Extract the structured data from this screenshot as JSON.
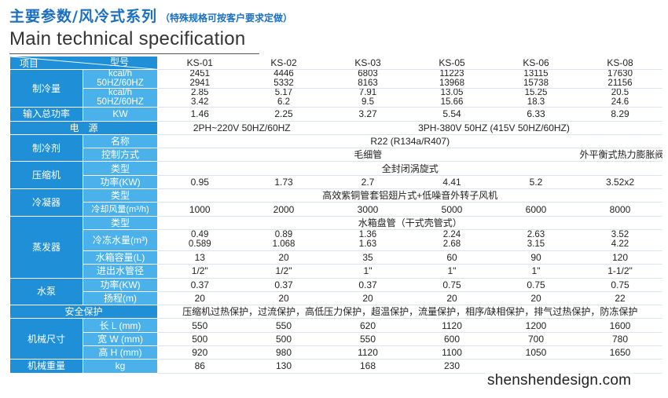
{
  "header": {
    "title_cn": "主要参数/风冷式系列",
    "title_note": "（特殊规格可按客户要求定做）",
    "title_en": "Main technical specification"
  },
  "table": {
    "corner_top": "型号",
    "corner_bottom": "项目",
    "models": [
      "KS-01",
      "KS-02",
      "KS-03",
      "KS-05",
      "KS-06",
      "KS-08"
    ],
    "cooling": {
      "label": "制冷量",
      "row1": {
        "unit": "kcal/h",
        "values": [
          "2451",
          "4446",
          "6803",
          "11223",
          "13115",
          "17630"
        ]
      },
      "row2": {
        "unit": "50HZ/60HZ",
        "values": [
          "2941",
          "5332",
          "8163",
          "13968",
          "15738",
          "21156"
        ]
      },
      "row3": {
        "unit": "kcal/h",
        "values": [
          "2.85",
          "5.17",
          "7.91",
          "13.05",
          "15.25",
          "20.5"
        ]
      },
      "row4": {
        "unit": "50HZ/60HZ",
        "values": [
          "3.42",
          "6.2",
          "9.5",
          "15.66",
          "18.3",
          "24.6"
        ]
      }
    },
    "input_power": {
      "label": "输入总功率",
      "unit": "KW",
      "values": [
        "1.46",
        "2.25",
        "3.27",
        "5.54",
        "6.33",
        "8.29"
      ]
    },
    "power_supply": {
      "label": "电　源",
      "value_a": "2PH~220V  50HZ/60HZ",
      "value_b": "3PH-380V  50HZ (415V  50HZ/60HZ)"
    },
    "refrigerant": {
      "label": "制冷剂",
      "name_label": "名称",
      "name_value": "R22 (R134a/R407)",
      "control_label": "控制方式",
      "control_value_a": "毛细管",
      "control_value_b": "外平衡式热力膨胀阀"
    },
    "compressor": {
      "label": "压缩机",
      "type_label": "类型",
      "type_value": "全封闭涡旋式",
      "power_label": "功率(KW)",
      "power_values": [
        "0.95",
        "1.73",
        "2.7",
        "4.41",
        "5.2",
        "3.52x2"
      ]
    },
    "condenser": {
      "label": "冷凝器",
      "type_label": "类型",
      "type_value": "高效紫铜管套铝翅片式+低噪音外转子风机",
      "air_label": "冷却风量(m³/h)",
      "air_values": [
        "1000",
        "2000",
        "3000",
        "5000",
        "6000",
        "8000"
      ]
    },
    "evaporator": {
      "label": "蒸发器",
      "type_label": "类型",
      "type_value": "水箱盘管（干式壳管式）",
      "flow_label": "冷冻水量(m³)",
      "flow_values_a": [
        "0.49",
        "0.89",
        "1.36",
        "2.24",
        "2.63",
        "3.52"
      ],
      "flow_values_b": [
        "0.589",
        "1.068",
        "1.63",
        "2.68",
        "3.15",
        "4.22"
      ],
      "tank_label": "水箱容量(L)",
      "tank_values": [
        "13",
        "20",
        "35",
        "60",
        "90",
        "120"
      ],
      "pipe_label": "进出水管径",
      "pipe_values": [
        "1/2\"",
        "1/2\"",
        "1\"",
        "1\"",
        "1\"",
        "1-1/2\""
      ]
    },
    "pump": {
      "label": "水泵",
      "power_label": "功率(KW)",
      "power_values": [
        "0.37",
        "0.37",
        "0.37",
        "0.75",
        "0.75",
        "0.75"
      ],
      "head_label": "扬程(m)",
      "head_values": [
        "20",
        "20",
        "20",
        "20",
        "20",
        "22"
      ]
    },
    "safety": {
      "label": "安全保护",
      "value": "压缩机过热保护，过流保护，高低压力保护，超温保护，流量保护，相序/缺相保护，排气过热保护，防冻保护"
    },
    "dimensions": {
      "label": "机械尺寸",
      "length_label": "长 L (mm)",
      "length_values": [
        "550",
        "550",
        "620",
        "1120",
        "1200",
        "1600"
      ],
      "width_label": "宽 W (mm)",
      "width_values": [
        "500",
        "500",
        "550",
        "600",
        "700",
        "780"
      ],
      "height_label": "高 H (mm)",
      "height_values": [
        "920",
        "980",
        "1120",
        "1100",
        "1050",
        "1650"
      ]
    },
    "weight": {
      "label": "机械重量",
      "unit": "kg",
      "values": [
        "86",
        "130",
        "168",
        "230",
        "",
        ""
      ]
    }
  },
  "watermark": "shenshendesign.com"
}
